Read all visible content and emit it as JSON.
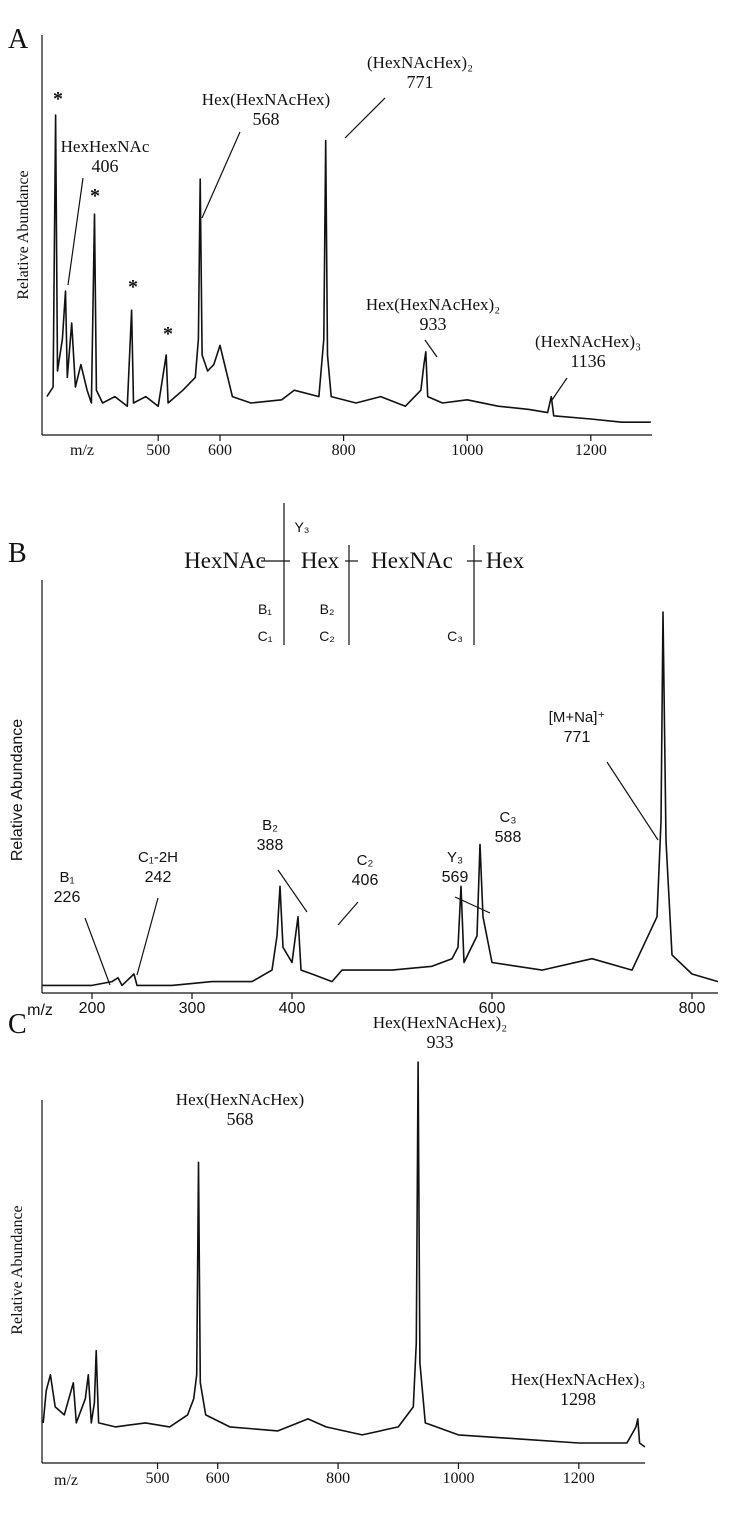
{
  "chart_data": [
    {
      "type": "line",
      "label": "A",
      "ylabel": "Relative Abundance",
      "xlabel": "m/z",
      "color": "#111111",
      "xlim": [
        312,
        1299
      ],
      "ylim": [
        0,
        100
      ],
      "xticks": [
        500,
        600,
        800,
        1000,
        1200
      ],
      "x": [
        320,
        330,
        334,
        337,
        345,
        350,
        353,
        360,
        366,
        375,
        385,
        392,
        397,
        400,
        410,
        430,
        450,
        457,
        460,
        480,
        500,
        513,
        516,
        540,
        560,
        565,
        568,
        571,
        580,
        590,
        600,
        610,
        620,
        650,
        700,
        720,
        760,
        768,
        771,
        774,
        780,
        820,
        860,
        900,
        925,
        930,
        933,
        936,
        960,
        1000,
        1050,
        1100,
        1130,
        1136,
        1140,
        1200,
        1250,
        1297
      ],
      "values": [
        12,
        15,
        100,
        20,
        30,
        45,
        18,
        35,
        15,
        22,
        14,
        10,
        69,
        14,
        10,
        12,
        9,
        39,
        10,
        12,
        9,
        25,
        10,
        14,
        18,
        30,
        80,
        25,
        20,
        22,
        28,
        20,
        12,
        10,
        11,
        14,
        12,
        30,
        92,
        25,
        12,
        10,
        12,
        9,
        14,
        22,
        26,
        12,
        10,
        11,
        9,
        8,
        7,
        12,
        6,
        5,
        4,
        4
      ],
      "annotations": [
        {
          "text": "*"
        },
        {
          "text": "HexHexNAc",
          "mz": 406
        },
        {
          "text": "*"
        },
        {
          "text": "*"
        },
        {
          "text": "*"
        },
        {
          "text": "Hex(HexNAcHex)",
          "mz": 568
        },
        {
          "text": "(HexNAcHex)₂",
          "mz": 771
        },
        {
          "text": "Hex(HexNAcHex)₂",
          "mz": 933
        },
        {
          "text": "(HexNAcHex)₃",
          "mz": 1136
        }
      ]
    },
    {
      "type": "line",
      "label": "B",
      "ylabel": "Relative Abundance",
      "xlabel": "m/z",
      "color": "#111111",
      "xlim": [
        150,
        826
      ],
      "ylim": [
        0,
        100
      ],
      "xticks": [
        200,
        300,
        400,
        600,
        800
      ],
      "x": [
        150,
        200,
        220,
        226,
        230,
        242,
        245,
        280,
        320,
        360,
        380,
        385,
        388,
        391,
        400,
        406,
        409,
        420,
        440,
        450,
        500,
        540,
        560,
        566,
        569,
        572,
        585,
        588,
        591,
        600,
        650,
        700,
        740,
        765,
        769,
        771,
        774,
        780,
        800,
        826
      ],
      "values": [
        2,
        2,
        3,
        4,
        2,
        5,
        2,
        2,
        3,
        3,
        6,
        15,
        28,
        12,
        8,
        20,
        6,
        5,
        3,
        6,
        6,
        7,
        9,
        12,
        28,
        8,
        15,
        39,
        20,
        8,
        6,
        9,
        6,
        20,
        45,
        100,
        40,
        10,
        5,
        3
      ],
      "structure": {
        "residues": [
          "HexNAc",
          "Hex",
          "HexNAc",
          "Hex"
        ],
        "above": [
          "Y₃"
        ],
        "below": [
          "B₁",
          "C₁",
          "B₂",
          "C₂",
          "C₃"
        ]
      },
      "annotations": [
        {
          "text": "B₁",
          "mz": 226
        },
        {
          "text": "C₁-2H",
          "mz": 242
        },
        {
          "text": "B₂",
          "mz": 388
        },
        {
          "text": "C₂",
          "mz": 406
        },
        {
          "text": "Y₃",
          "mz": 569
        },
        {
          "text": "C₃",
          "mz": 588
        },
        {
          "text": "[M+Na]⁺",
          "mz": 771
        }
      ]
    },
    {
      "type": "line",
      "label": "C",
      "ylabel": "Relative Abundance",
      "xlabel": "m/z",
      "color": "#111111",
      "xlim": [
        308,
        1310
      ],
      "ylim": [
        0,
        100
      ],
      "xticks": [
        500,
        600,
        800,
        1000,
        1200
      ],
      "x": [
        310,
        315,
        322,
        330,
        345,
        360,
        365,
        380,
        385,
        390,
        395,
        398,
        402,
        430,
        480,
        520,
        550,
        560,
        565,
        568,
        571,
        580,
        620,
        700,
        750,
        780,
        840,
        900,
        925,
        930,
        933,
        936,
        945,
        1000,
        1100,
        1200,
        1280,
        1295,
        1298,
        1301,
        1310
      ],
      "values": [
        10,
        18,
        22,
        14,
        12,
        20,
        10,
        16,
        22,
        10,
        15,
        28,
        10,
        9,
        10,
        9,
        12,
        16,
        22,
        75,
        20,
        12,
        9,
        8,
        11,
        9,
        7,
        9,
        14,
        30,
        100,
        25,
        10,
        7,
        6,
        5,
        5,
        9,
        11,
        5,
        4
      ],
      "annotations": [
        {
          "text": "Hex(HexNAcHex)",
          "mz": 568
        },
        {
          "text": "Hex(HexNAcHex)₂",
          "mz": 933
        },
        {
          "text": "Hex(HexNAcHex)₃",
          "mz": 1298
        }
      ]
    }
  ]
}
